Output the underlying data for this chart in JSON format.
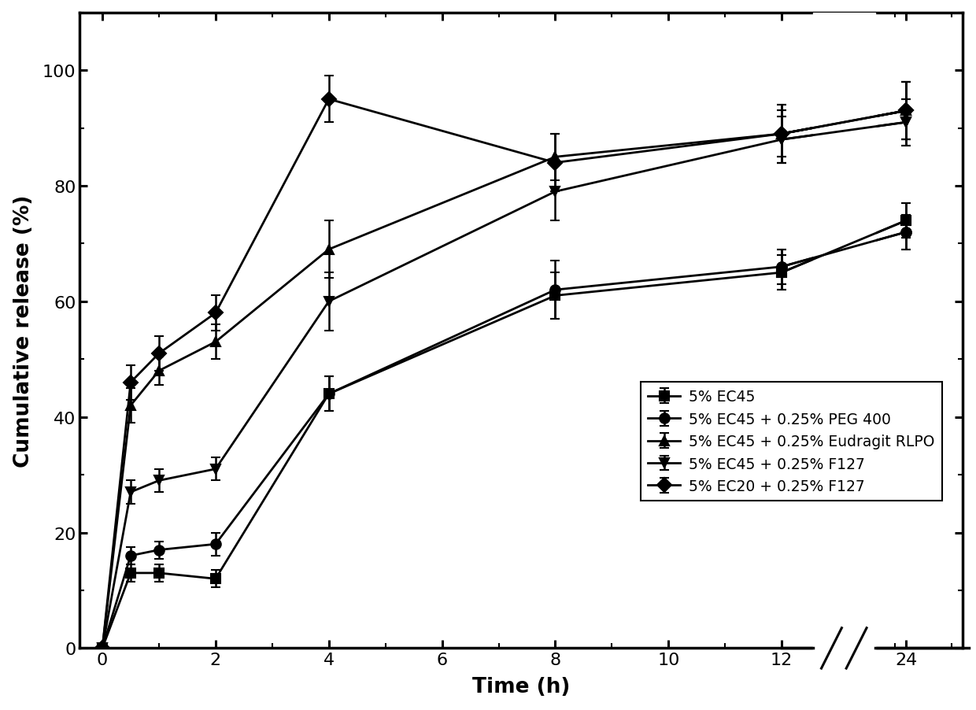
{
  "title": "",
  "xlabel": "Time (h)",
  "ylabel": "Cumulative release (%)",
  "ylim": [
    0,
    110
  ],
  "yticks": [
    0,
    20,
    40,
    60,
    80,
    100
  ],
  "series": [
    {
      "label": "5% EC45",
      "marker": "s",
      "linestyle": "-",
      "color": "#000000",
      "x": [
        0,
        0.5,
        1,
        2,
        4,
        8,
        12,
        24
      ],
      "y": [
        0,
        13,
        13,
        12,
        44,
        61,
        65,
        74
      ],
      "yerr": [
        0,
        1.5,
        1.5,
        1.5,
        3,
        4,
        3,
        3
      ]
    },
    {
      "label": "5% EC45 + 0.25% PEG 400",
      "marker": "o",
      "linestyle": "-",
      "color": "#000000",
      "x": [
        0,
        0.5,
        1,
        2,
        4,
        8,
        12,
        24
      ],
      "y": [
        0,
        16,
        17,
        18,
        44,
        62,
        66,
        72
      ],
      "yerr": [
        0,
        1.5,
        1.5,
        2,
        3,
        5,
        3,
        3
      ]
    },
    {
      "label": "5% EC45 + 0.25% Eudragit RLPO",
      "marker": "^",
      "linestyle": "-",
      "color": "#000000",
      "x": [
        0,
        0.5,
        1,
        2,
        4,
        8,
        12,
        24
      ],
      "y": [
        0,
        42,
        48,
        53,
        69,
        85,
        89,
        93
      ],
      "yerr": [
        0,
        3,
        2.5,
        3,
        5,
        4,
        4,
        5
      ]
    },
    {
      "label": "5% EC45 + 0.25% F127",
      "marker": "v",
      "linestyle": "-",
      "color": "#000000",
      "x": [
        0,
        0.5,
        1,
        2,
        4,
        8,
        12,
        24
      ],
      "y": [
        0,
        27,
        29,
        31,
        60,
        79,
        88,
        91
      ],
      "yerr": [
        0,
        2,
        2,
        2,
        5,
        5,
        4,
        4
      ]
    },
    {
      "label": "5% EC20 + 0.25% F127",
      "marker": "D",
      "linestyle": "-",
      "color": "#000000",
      "x": [
        0,
        0.5,
        1,
        2,
        4,
        8,
        12,
        24
      ],
      "y": [
        0,
        46,
        51,
        58,
        95,
        84,
        89,
        93
      ],
      "yerr": [
        0,
        3,
        3,
        3,
        4,
        5,
        5,
        5
      ]
    }
  ],
  "background_color": "#ffffff",
  "marker_size": 9,
  "linewidth": 2.0,
  "capsize": 4,
  "elinewidth": 1.8,
  "capthick": 1.8,
  "spine_linewidth": 2.5,
  "tick_labelsize": 16,
  "axis_labelsize": 19,
  "legend_fontsize": 13.5,
  "x_real": [
    0,
    2,
    4,
    6,
    8,
    10,
    12,
    24
  ],
  "x_display": [
    0,
    2,
    4,
    6,
    8,
    10,
    12,
    14.2
  ],
  "x_tick_labels": [
    "0",
    "2",
    "4",
    "6",
    "8",
    "10",
    "12",
    "24"
  ],
  "break_x_center": 13.1,
  "xlim": [
    -0.4,
    15.2
  ]
}
